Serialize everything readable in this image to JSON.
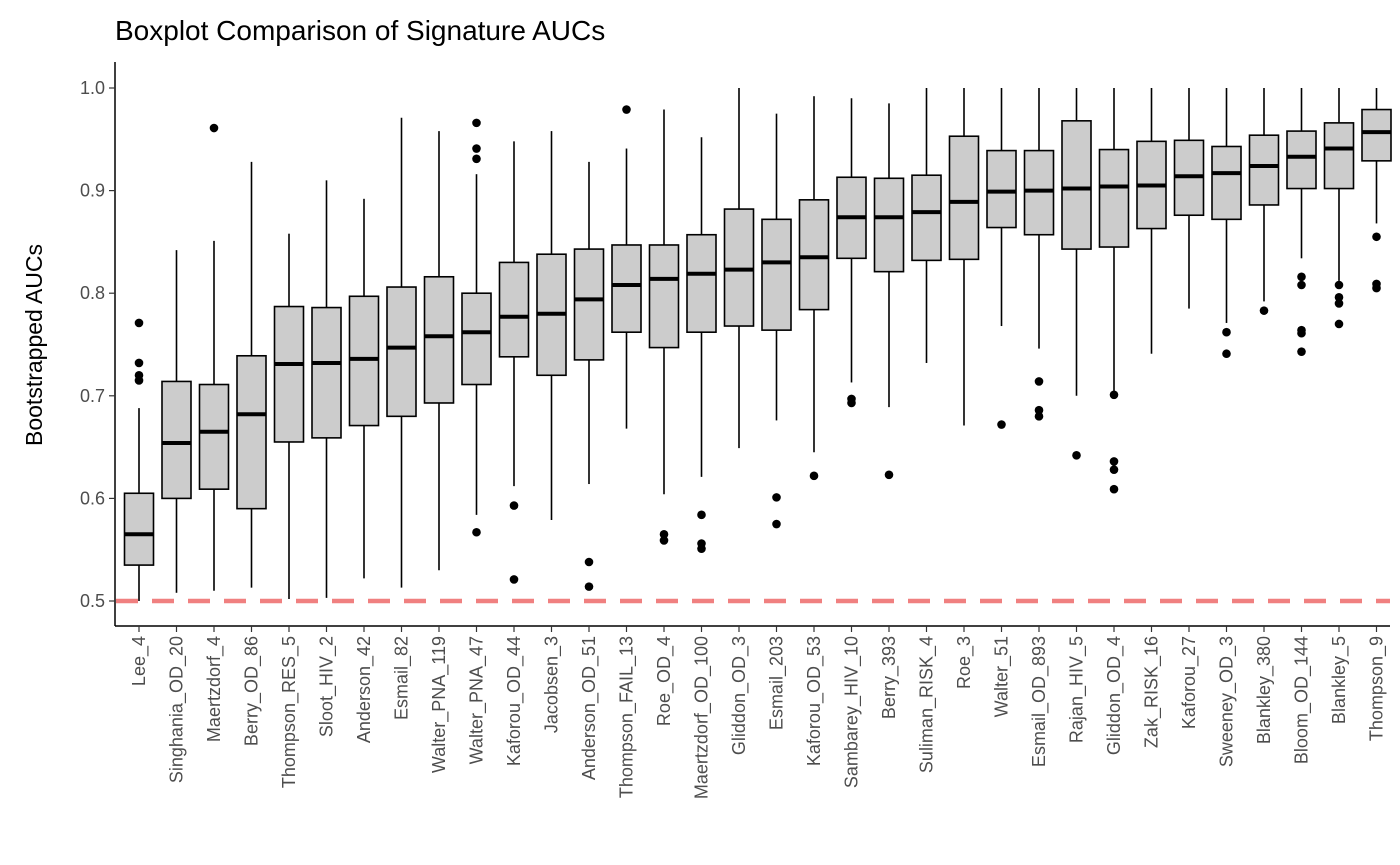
{
  "chart_data": {
    "type": "boxplot",
    "title": "Boxplot Comparison of Signature AUCs",
    "xlabel": "",
    "ylabel": "Bootstrapped AUCs",
    "ylim": [
      0.475,
      1.025
    ],
    "yticks": [
      0.5,
      0.6,
      0.7,
      0.8,
      0.9,
      1.0
    ],
    "ytick_labels": [
      "0.5",
      "0.6",
      "0.7",
      "0.8",
      "0.9",
      "1.0"
    ],
    "reference_line": {
      "y": 0.5,
      "style": "dashed",
      "color": "#f08080"
    },
    "grid": false,
    "box_color": "#cccccc",
    "categories": [
      "Lee_4",
      "Singhania_OD_20",
      "Maertzdorf_4",
      "Berry_OD_86",
      "Thompson_RES_5",
      "Sloot_HIV_2",
      "Anderson_42",
      "Esmail_82",
      "Walter_PNA_119",
      "Walter_PNA_47",
      "Kaforou_OD_44",
      "Jacobsen_3",
      "Anderson_OD_51",
      "Thompson_FAIL_13",
      "Roe_OD_4",
      "Maertzdorf_OD_100",
      "Gliddon_OD_3",
      "Esmail_203",
      "Kaforou_OD_53",
      "Sambarey_HIV_10",
      "Berry_393",
      "Suliman_RISK_4",
      "Roe_3",
      "Walter_51",
      "Esmail_OD_893",
      "Rajan_HIV_5",
      "Gliddon_OD_4",
      "Zak_RISK_16",
      "Kaforou_27",
      "Sweeney_OD_3",
      "Blankley_380",
      "Bloom_OD_144",
      "Blankley_5",
      "Thompson_9"
    ],
    "boxes": [
      {
        "min": 0.5,
        "q1": 0.535,
        "median": 0.565,
        "q3": 0.605,
        "max": 0.688,
        "outliers": [
          0.715,
          0.72,
          0.732,
          0.771
        ]
      },
      {
        "min": 0.508,
        "q1": 0.6,
        "median": 0.654,
        "q3": 0.714,
        "max": 0.842,
        "outliers": []
      },
      {
        "min": 0.51,
        "q1": 0.609,
        "median": 0.665,
        "q3": 0.711,
        "max": 0.851,
        "outliers": [
          0.961
        ]
      },
      {
        "min": 0.513,
        "q1": 0.59,
        "median": 0.682,
        "q3": 0.739,
        "max": 0.928,
        "outliers": []
      },
      {
        "min": 0.502,
        "q1": 0.655,
        "median": 0.731,
        "q3": 0.787,
        "max": 0.858,
        "outliers": []
      },
      {
        "min": 0.503,
        "q1": 0.659,
        "median": 0.732,
        "q3": 0.786,
        "max": 0.91,
        "outliers": []
      },
      {
        "min": 0.522,
        "q1": 0.671,
        "median": 0.736,
        "q3": 0.797,
        "max": 0.892,
        "outliers": []
      },
      {
        "min": 0.513,
        "q1": 0.68,
        "median": 0.747,
        "q3": 0.806,
        "max": 0.971,
        "outliers": []
      },
      {
        "min": 0.53,
        "q1": 0.693,
        "median": 0.758,
        "q3": 0.816,
        "max": 0.958,
        "outliers": []
      },
      {
        "min": 0.584,
        "q1": 0.711,
        "median": 0.762,
        "q3": 0.8,
        "max": 0.916,
        "outliers": [
          0.567,
          0.931,
          0.941,
          0.966
        ]
      },
      {
        "min": 0.612,
        "q1": 0.738,
        "median": 0.777,
        "q3": 0.83,
        "max": 0.948,
        "outliers": [
          0.521,
          0.593
        ]
      },
      {
        "min": 0.579,
        "q1": 0.72,
        "median": 0.78,
        "q3": 0.838,
        "max": 0.958,
        "outliers": []
      },
      {
        "min": 0.614,
        "q1": 0.735,
        "median": 0.794,
        "q3": 0.843,
        "max": 0.928,
        "outliers": [
          0.514,
          0.538
        ]
      },
      {
        "min": 0.668,
        "q1": 0.762,
        "median": 0.808,
        "q3": 0.847,
        "max": 0.941,
        "outliers": [
          0.979
        ]
      },
      {
        "min": 0.604,
        "q1": 0.747,
        "median": 0.814,
        "q3": 0.847,
        "max": 0.979,
        "outliers": [
          0.559,
          0.565
        ]
      },
      {
        "min": 0.621,
        "q1": 0.762,
        "median": 0.819,
        "q3": 0.857,
        "max": 0.952,
        "outliers": [
          0.551,
          0.556,
          0.584
        ]
      },
      {
        "min": 0.649,
        "q1": 0.768,
        "median": 0.823,
        "q3": 0.882,
        "max": 1.0,
        "outliers": []
      },
      {
        "min": 0.676,
        "q1": 0.764,
        "median": 0.83,
        "q3": 0.872,
        "max": 0.975,
        "outliers": [
          0.575,
          0.601
        ]
      },
      {
        "min": 0.645,
        "q1": 0.784,
        "median": 0.835,
        "q3": 0.891,
        "max": 0.992,
        "outliers": [
          0.622
        ]
      },
      {
        "min": 0.713,
        "q1": 0.834,
        "median": 0.874,
        "q3": 0.913,
        "max": 0.99,
        "outliers": [
          0.693,
          0.697
        ]
      },
      {
        "min": 0.689,
        "q1": 0.821,
        "median": 0.874,
        "q3": 0.912,
        "max": 0.985,
        "outliers": [
          0.623
        ]
      },
      {
        "min": 0.732,
        "q1": 0.832,
        "median": 0.879,
        "q3": 0.915,
        "max": 1.0,
        "outliers": []
      },
      {
        "min": 0.671,
        "q1": 0.833,
        "median": 0.889,
        "q3": 0.953,
        "max": 1.0,
        "outliers": []
      },
      {
        "min": 0.768,
        "q1": 0.864,
        "median": 0.899,
        "q3": 0.939,
        "max": 1.0,
        "outliers": [
          0.672
        ]
      },
      {
        "min": 0.746,
        "q1": 0.857,
        "median": 0.9,
        "q3": 0.939,
        "max": 1.0,
        "outliers": [
          0.68,
          0.686,
          0.714
        ]
      },
      {
        "min": 0.7,
        "q1": 0.843,
        "median": 0.902,
        "q3": 0.968,
        "max": 1.0,
        "outliers": [
          0.642
        ]
      },
      {
        "min": 0.702,
        "q1": 0.845,
        "median": 0.904,
        "q3": 0.94,
        "max": 1.0,
        "outliers": [
          0.609,
          0.628,
          0.636,
          0.701
        ]
      },
      {
        "min": 0.741,
        "q1": 0.863,
        "median": 0.905,
        "q3": 0.948,
        "max": 1.0,
        "outliers": []
      },
      {
        "min": 0.785,
        "q1": 0.876,
        "median": 0.914,
        "q3": 0.949,
        "max": 1.0,
        "outliers": []
      },
      {
        "min": 0.771,
        "q1": 0.872,
        "median": 0.917,
        "q3": 0.943,
        "max": 1.0,
        "outliers": [
          0.741,
          0.762
        ]
      },
      {
        "min": 0.792,
        "q1": 0.886,
        "median": 0.924,
        "q3": 0.954,
        "max": 1.0,
        "outliers": [
          0.783
        ]
      },
      {
        "min": 0.834,
        "q1": 0.902,
        "median": 0.933,
        "q3": 0.958,
        "max": 1.0,
        "outliers": [
          0.743,
          0.761,
          0.764,
          0.808,
          0.816
        ]
      },
      {
        "min": 0.812,
        "q1": 0.902,
        "median": 0.941,
        "q3": 0.966,
        "max": 1.0,
        "outliers": [
          0.77,
          0.79,
          0.796,
          0.808
        ]
      },
      {
        "min": 0.868,
        "q1": 0.929,
        "median": 0.957,
        "q3": 0.979,
        "max": 1.0,
        "outliers": [
          0.805,
          0.809,
          0.855
        ]
      }
    ]
  }
}
